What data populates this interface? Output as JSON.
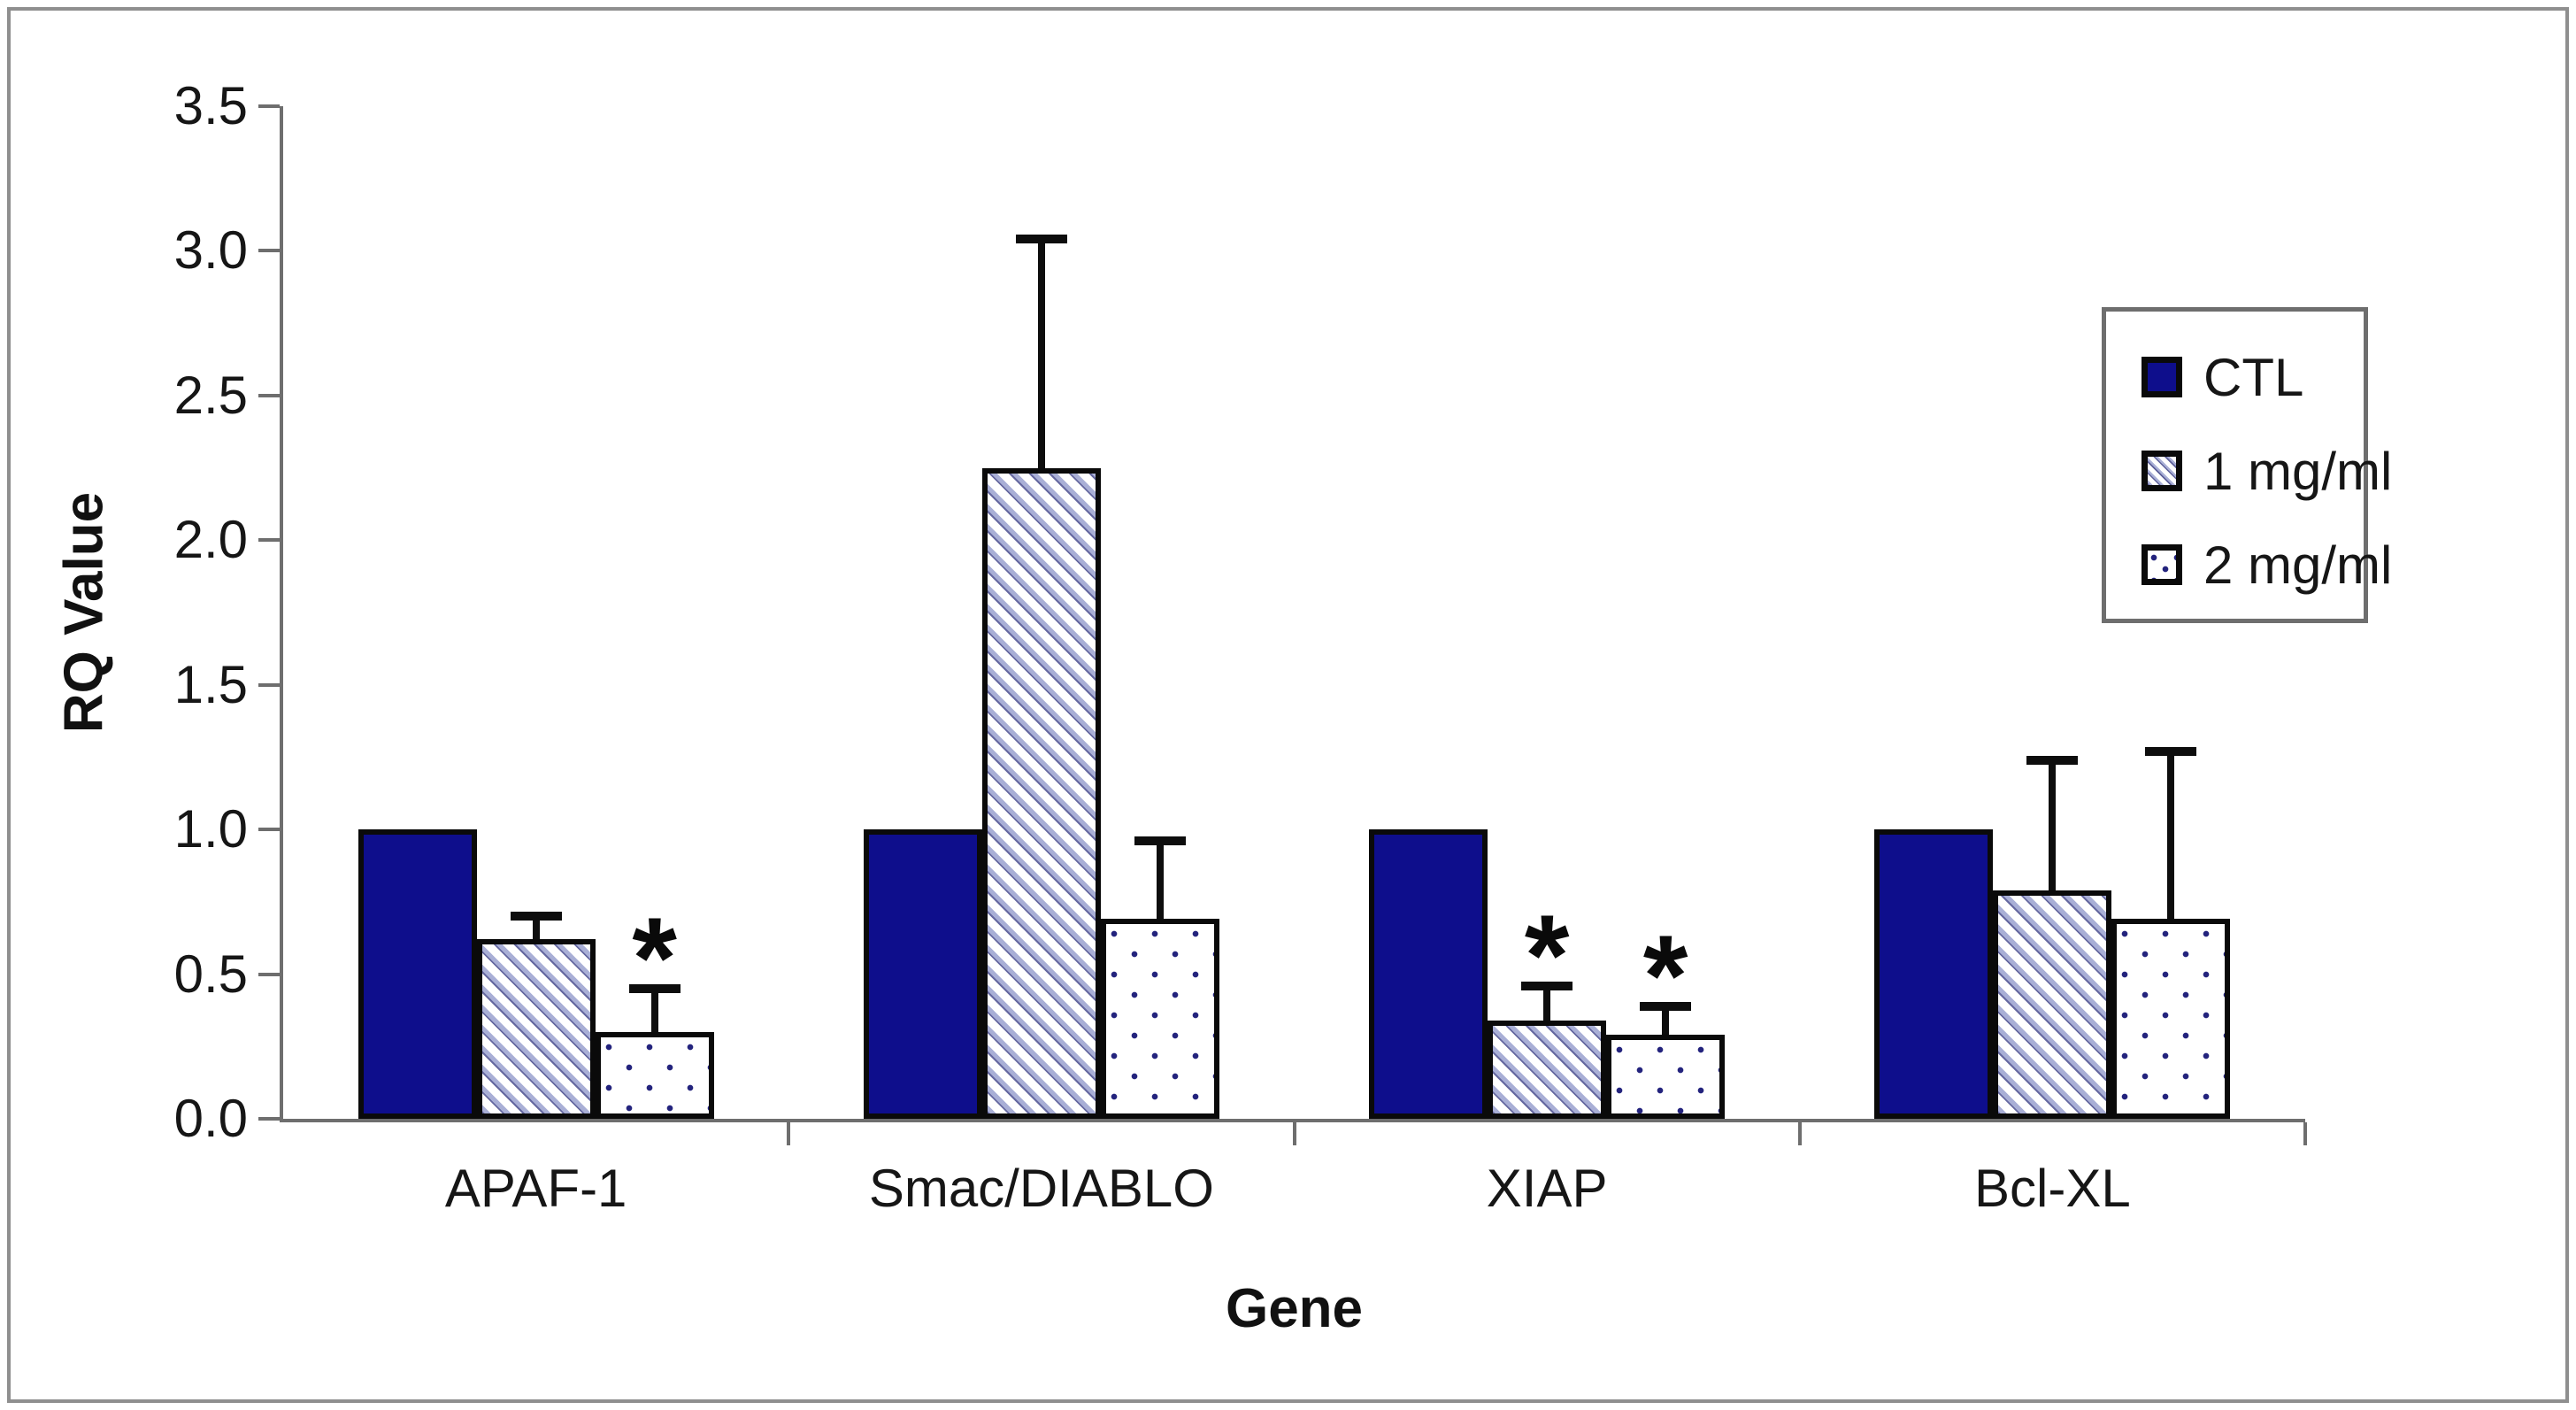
{
  "figure": {
    "background": "#ffffff",
    "frame_color": "#8f8f8f"
  },
  "chart_data": {
    "type": "bar",
    "title": "",
    "xlabel": "Gene",
    "ylabel": "RQ Value",
    "ylim": [
      0.0,
      3.5
    ],
    "yticks": [
      0.0,
      0.5,
      1.0,
      1.5,
      2.0,
      2.5,
      3.0,
      3.5
    ],
    "ytick_labels": [
      "0.0",
      "0.5",
      "1.0",
      "1.5",
      "2.0",
      "2.5",
      "3.0",
      "3.5"
    ],
    "grid": false,
    "legend_position": "top-right",
    "significance_marker": "*",
    "categories": [
      "APAF-1",
      "Smac/DIABLO",
      "XIAP",
      "Bcl-XL"
    ],
    "series": [
      {
        "name": "CTL",
        "pattern": "solid-navy",
        "values": [
          1.0,
          1.0,
          1.0,
          1.0
        ],
        "errors": [
          0,
          0,
          0,
          0
        ],
        "significant": [
          false,
          false,
          false,
          false
        ]
      },
      {
        "name": "1 mg/ml",
        "pattern": "diagonal-hatch",
        "values": [
          0.62,
          2.25,
          0.34,
          0.79
        ],
        "errors": [
          0.08,
          0.79,
          0.12,
          0.45
        ],
        "significant": [
          false,
          false,
          true,
          false
        ]
      },
      {
        "name": "2 mg/ml",
        "pattern": "dotted",
        "values": [
          0.3,
          0.69,
          0.29,
          0.69
        ],
        "errors": [
          0.15,
          0.27,
          0.1,
          0.58
        ],
        "significant": [
          true,
          false,
          true,
          false
        ]
      }
    ],
    "colors": {
      "navy": "#0e0e8c",
      "hatch_stripe": "#a9afd6",
      "dot": "#23237d",
      "bar_border": "#0a0a0a",
      "error_bar": "#0d0d0d",
      "axis": "#6e6e6e",
      "text": "#161616",
      "legend_border": "#6e6e6e"
    }
  }
}
